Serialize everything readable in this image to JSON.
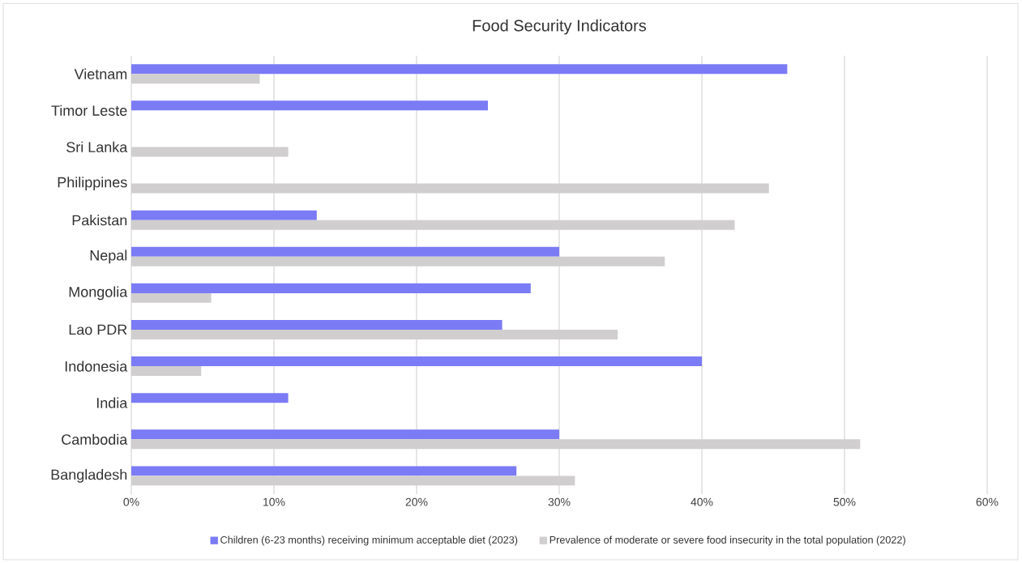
{
  "chart_data": {
    "type": "bar",
    "orientation": "horizontal",
    "title": "Food Security Indicators",
    "categories": [
      "Vietnam",
      "Timor Leste",
      "Sri Lanka",
      "Philippines",
      "Pakistan",
      "Nepal",
      "Mongolia",
      "Lao PDR",
      "Indonesia",
      "India",
      "Cambodia",
      "Bangladesh"
    ],
    "series": [
      {
        "name": "Children (6-23 months) receiving minimum acceptable diet (2023)",
        "color": "#7b7bf5",
        "values": [
          46,
          25,
          null,
          null,
          13,
          30,
          28,
          26,
          40,
          11,
          30,
          27
        ]
      },
      {
        "name": "Prevalence of moderate or severe food insecurity in the total population (2022)",
        "color": "#d0cece",
        "values": [
          9,
          null,
          11,
          44.7,
          42.3,
          37.4,
          5.6,
          34.1,
          4.9,
          null,
          51.1,
          31.1
        ]
      }
    ],
    "xlim": [
      0,
      60
    ],
    "xticks": [
      {
        "value": 0,
        "label": "0%"
      },
      {
        "value": 10,
        "label": "10%"
      },
      {
        "value": 20,
        "label": "20%"
      },
      {
        "value": 30,
        "label": "30%"
      },
      {
        "value": 40,
        "label": "40%"
      },
      {
        "value": 50,
        "label": "50%"
      },
      {
        "value": 60,
        "label": "60%"
      }
    ],
    "grid": "x",
    "legend": "bottom"
  }
}
